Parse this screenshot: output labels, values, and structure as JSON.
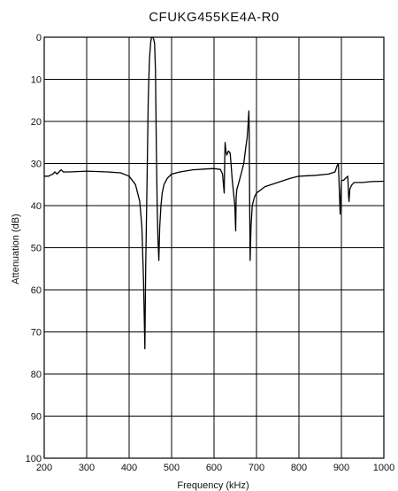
{
  "chart_data": {
    "type": "line",
    "title": "CFUKG455KE4A-R0",
    "xlabel": "Frequency (kHz)",
    "ylabel": "Attenuation (dB)",
    "xlim": [
      200,
      1000
    ],
    "ylim": [
      0,
      100
    ],
    "y_inverted": true,
    "grid": true,
    "x_ticks": [
      "200",
      "300",
      "400",
      "500",
      "600",
      "700",
      "800",
      "900",
      "1000"
    ],
    "y_ticks": [
      "0",
      "10",
      "20",
      "30",
      "40",
      "50",
      "60",
      "70",
      "80",
      "90",
      "100"
    ],
    "series": [
      {
        "x": [
          200,
          210,
          220,
          225,
          230,
          235,
          240,
          245,
          260,
          300,
          350,
          380,
          400,
          415,
          425,
          430,
          434,
          437,
          439,
          442,
          445,
          448,
          451,
          453,
          456,
          458,
          460,
          462,
          464,
          466,
          468,
          470,
          472,
          475,
          478,
          482,
          490,
          500,
          520,
          550,
          580,
          600,
          615,
          620,
          624,
          625,
          626,
          628,
          630,
          634,
          638,
          640,
          643,
          646,
          649,
          651,
          652,
          654,
          657,
          661,
          665,
          670,
          675,
          678,
          680,
          682,
          683,
          684,
          685,
          687,
          690,
          695,
          700,
          720,
          750,
          780,
          800,
          840,
          870,
          885,
          890,
          893,
          895,
          897,
          900,
          905,
          910,
          915,
          917,
          918,
          920,
          925,
          930,
          950,
          970,
          1000
        ],
        "y": [
          33,
          33,
          32.5,
          32,
          32.5,
          32,
          31.5,
          32,
          32,
          31.8,
          32,
          32.2,
          33,
          35,
          39,
          45,
          58,
          74,
          55,
          35,
          15,
          5,
          1,
          0,
          0,
          0.5,
          1.5,
          8,
          25,
          40,
          48,
          53,
          45,
          40,
          37,
          35,
          33.5,
          32.5,
          32,
          31.5,
          31.3,
          31.2,
          31.4,
          32.5,
          37,
          30,
          25,
          27,
          28,
          27,
          27.5,
          30,
          34,
          37,
          40,
          46,
          38,
          36,
          35,
          33.5,
          32,
          30,
          26,
          24,
          21,
          17.5,
          23,
          40,
          53,
          45,
          40,
          38,
          37,
          35.5,
          34.5,
          33.5,
          33,
          32.8,
          32.5,
          32,
          30.5,
          30,
          36,
          42,
          34,
          34,
          33.5,
          33,
          38,
          39,
          36,
          35,
          34.5,
          34.5,
          34.3,
          34.2
        ]
      }
    ]
  }
}
